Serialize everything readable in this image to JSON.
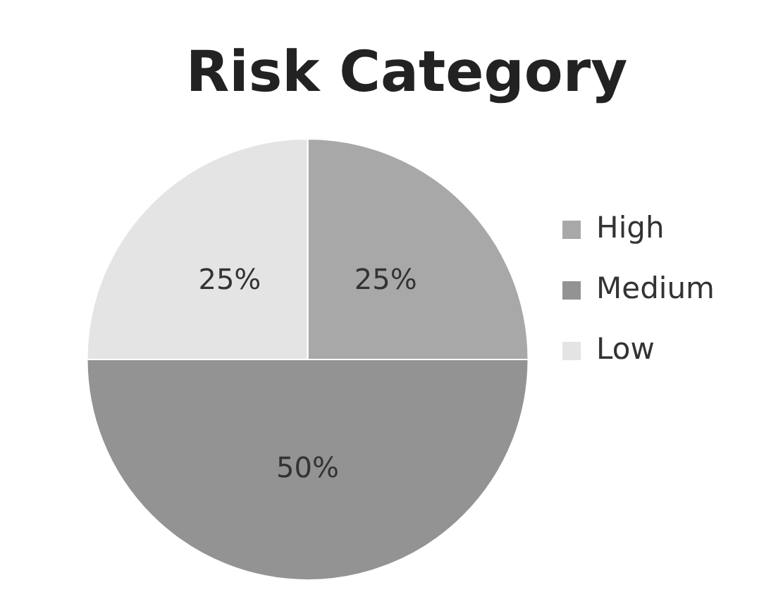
{
  "chart_data": {
    "type": "pie",
    "title": "Risk Category",
    "categories": [
      "High",
      "Medium",
      "Low"
    ],
    "values": [
      25,
      50,
      25
    ],
    "colors": [
      "#a8a8a8",
      "#939393",
      "#e4e4e4"
    ],
    "value_labels": [
      "25%",
      "50%",
      "25%"
    ],
    "legend": "right"
  }
}
